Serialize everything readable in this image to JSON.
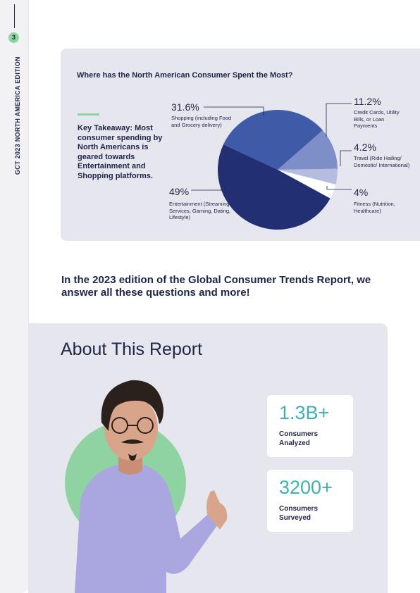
{
  "sidebar": {
    "page_number": "3",
    "title": "GCT 2023 NORTH AMERICA EDITION"
  },
  "chart_section": {
    "takeaway": "Key Takeaway: Most consumer spending by North Americans is geared towards Entertainment and Shopping platforms."
  },
  "chart_data": {
    "type": "pie",
    "title": "Where has the North American Consumer Spent the Most?",
    "slices": [
      {
        "pct": "31.6%",
        "value": 31.6,
        "label": "Shopping (including Food and Grocery delivery)",
        "color": "#3f5aa6"
      },
      {
        "pct": "11.2%",
        "value": 11.2,
        "label": "Credit Cards, Utility Bills, or Loan Payments",
        "color": "#7d8fc6"
      },
      {
        "pct": "4.2%",
        "value": 4.2,
        "label": "Travel (Ride Hailing/ Domestic/ International)",
        "color": "#b4bde0"
      },
      {
        "pct": "4%",
        "value": 4.0,
        "label": "Fitness (Nutrition, Healthcare)",
        "color": "#ffffff"
      },
      {
        "pct": "49%",
        "value": 49.0,
        "label": "Entertainment (Streaming Services, Gaming, Dating, Lifestyle)",
        "color": "#232f73"
      }
    ]
  },
  "headline": "In the 2023 edition of the Global Consumer Trends Report, we answer all these questions and more!",
  "about": {
    "title": "About This Report",
    "stats": [
      {
        "value": "1.3B+",
        "label_line1": "Consumers",
        "label_line2": "Analyzed"
      },
      {
        "value": "3200+",
        "label_line1": "Consumers",
        "label_line2": "Surveyed"
      }
    ]
  },
  "colors": {
    "navy": "#1f2547",
    "accent_green": "#8fd3a3",
    "accent_teal": "#3fb0b3",
    "card_bg": "#e6e6ee"
  }
}
